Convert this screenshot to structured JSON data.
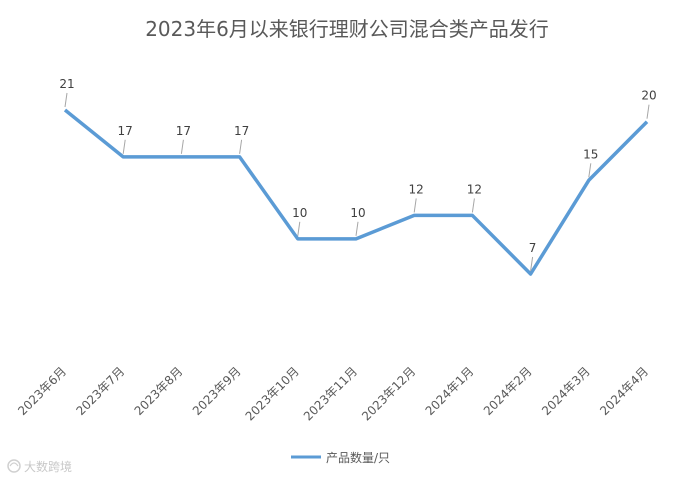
{
  "chart_data": {
    "type": "line",
    "title": "2023年6月以来银行理财公司混合类产品发行",
    "categories": [
      "2023年6月",
      "2023年7月",
      "2023年8月",
      "2023年9月",
      "2023年10月",
      "2023年11月",
      "2023年12月",
      "2024年1月",
      "2024年2月",
      "2024年3月",
      "2024年4月"
    ],
    "series": [
      {
        "name": "产品数量/只",
        "values": [
          21,
          17,
          17,
          17,
          10,
          10,
          12,
          12,
          7,
          15,
          20
        ]
      }
    ],
    "data_labels": true,
    "grid": false,
    "legend": "bottom",
    "colors": {
      "line": "#5b9bd5"
    }
  },
  "watermark": {
    "text": "大数跨境"
  }
}
